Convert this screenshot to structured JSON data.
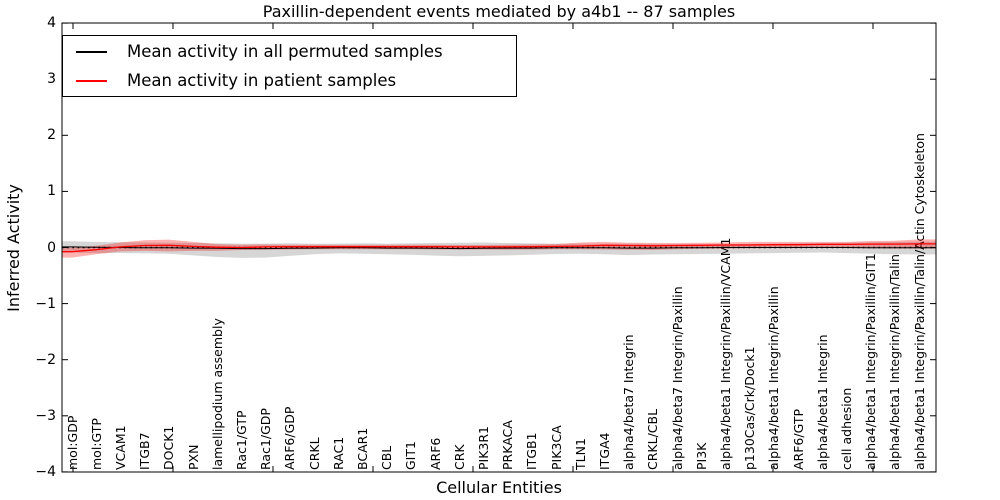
{
  "title": "Paxillin-dependent events mediated by a4b1 -- 87 samples",
  "axes": {
    "xlabel": "Cellular Entities",
    "ylabel": "Inferred Activity",
    "yticks": [
      4,
      3,
      2,
      1,
      0,
      -1,
      -2,
      -3,
      -4
    ],
    "ylim": [
      -4,
      4
    ]
  },
  "legend": [
    {
      "label": "Mean activity in all permuted samples",
      "color": "#000000"
    },
    {
      "label": "Mean activity in patient samples",
      "color": "#ff0000"
    }
  ],
  "colors": {
    "permuted_line": "#000000",
    "patient_line": "#ff0000",
    "permuted_band": "rgba(0,0,0,0.16)",
    "patient_band": "rgba(255,0,0,0.30)",
    "frame": "#000000"
  },
  "chart_data": {
    "type": "line",
    "title": "Paxillin-dependent events mediated by a4b1 -- 87 samples",
    "xlabel": "Cellular Entities",
    "ylabel": "Inferred Activity",
    "ylim": [
      -4,
      4
    ],
    "grid": false,
    "legend_position": "upper left",
    "categories": [
      "mol:GDP",
      "mol:GTP",
      "VCAM1",
      "ITGB7",
      "DOCK1",
      "PXN",
      "lamellipodium assembly",
      "Rac1/GTP",
      "Rac1/GDP",
      "ARF6/GDP",
      "CRKL",
      "RAC1",
      "BCAR1",
      "CBL",
      "GIT1",
      "ARF6",
      "CRK",
      "PIK3R1",
      "PRKACA",
      "ITGB1",
      "PIK3CA",
      "TLN1",
      "ITGA4",
      "alpha4/beta7 Integrin",
      "CRKL/CBL",
      "alpha4/beta7 Integrin/Paxillin",
      "PI3K",
      "alpha4/beta1 Integrin/Paxillin/VCAM1",
      "p130Cas/Crk/Dock1",
      "alpha4/beta1 Integrin/Paxillin",
      "ARF6/GTP",
      "alpha4/beta1 Integrin",
      "cell adhesion",
      "alpha4/beta1 Integrin/Paxillin/GIT1",
      "alpha4/beta1 Integrin/Paxillin/Talin",
      "alpha4/beta1 Integrin/Paxillin/Talin/Actin Cytoskeleton"
    ],
    "series": [
      {
        "name": "Mean activity in all permuted samples",
        "color": "#000000",
        "style": "solid",
        "values": [
          0.01,
          0.005,
          0,
          -0.005,
          -0.005,
          -0.01,
          -0.015,
          -0.02,
          -0.02,
          -0.015,
          -0.01,
          -0.005,
          -0.005,
          -0.01,
          -0.01,
          -0.015,
          -0.02,
          -0.015,
          -0.01,
          -0.01,
          -0.005,
          -0.005,
          -0.005,
          -0.01,
          -0.01,
          -0.005,
          -0.005,
          0,
          0,
          0,
          0,
          0,
          0,
          -0.005,
          -0.005,
          -0.005
        ]
      },
      {
        "name": "Mean activity in patient samples",
        "color": "#ff0000",
        "style": "solid",
        "values": [
          -0.075,
          -0.04,
          0.01,
          0.035,
          0.04,
          0.02,
          0.005,
          0,
          0.01,
          0.015,
          0.015,
          0.015,
          0.015,
          0.015,
          0.015,
          0.015,
          0.01,
          0.01,
          0.01,
          0.015,
          0.02,
          0.025,
          0.04,
          0.035,
          0.03,
          0.035,
          0.04,
          0.045,
          0.045,
          0.05,
          0.05,
          0.055,
          0.055,
          0.06,
          0.06,
          0.065
        ]
      },
      {
        "name": "Permuted samples std band",
        "type": "band",
        "color": "rgba(0,0,0,0.16)",
        "upper": [
          0.11,
          0.1,
          0.095,
          0.09,
          0.085,
          0.08,
          0.075,
          0.07,
          0.07,
          0.075,
          0.07,
          0.07,
          0.075,
          0.07,
          0.075,
          0.08,
          0.085,
          0.09,
          0.08,
          0.075,
          0.07,
          0.07,
          0.07,
          0.07,
          0.065,
          0.06,
          0.055,
          0.06,
          0.065,
          0.07,
          0.075,
          0.08,
          0.085,
          0.095,
          0.1,
          0.105
        ],
        "lower": [
          -0.09,
          -0.1,
          -0.1,
          -0.105,
          -0.11,
          -0.14,
          -0.17,
          -0.185,
          -0.18,
          -0.15,
          -0.12,
          -0.105,
          -0.11,
          -0.12,
          -0.13,
          -0.145,
          -0.155,
          -0.15,
          -0.14,
          -0.13,
          -0.115,
          -0.11,
          -0.12,
          -0.135,
          -0.125,
          -0.12,
          -0.115,
          -0.11,
          -0.105,
          -0.1,
          -0.095,
          -0.09,
          -0.1,
          -0.11,
          -0.12,
          -0.125
        ]
      },
      {
        "name": "Patient samples std band",
        "type": "band",
        "color": "rgba(255,0,0,0.30)",
        "upper": [
          -0.005,
          0.03,
          0.09,
          0.13,
          0.14,
          0.1,
          0.06,
          0.05,
          0.055,
          0.05,
          0.05,
          0.05,
          0.05,
          0.05,
          0.05,
          0.05,
          0.045,
          0.045,
          0.05,
          0.055,
          0.06,
          0.09,
          0.1,
          0.085,
          0.08,
          0.08,
          0.085,
          0.09,
          0.1,
          0.1,
          0.1,
          0.1,
          0.1,
          0.115,
          0.12,
          0.145
        ],
        "lower": [
          -0.18,
          -0.12,
          -0.07,
          -0.06,
          -0.07,
          -0.06,
          -0.06,
          -0.045,
          -0.04,
          -0.035,
          -0.03,
          -0.03,
          -0.03,
          -0.03,
          -0.03,
          -0.035,
          -0.035,
          -0.035,
          -0.04,
          -0.035,
          -0.03,
          -0.03,
          -0.035,
          -0.04,
          -0.045,
          -0.03,
          -0.02,
          -0.02,
          -0.015,
          -0.01,
          -0.01,
          -0.005,
          -0.01,
          -0.015,
          -0.02,
          -0.02
        ]
      },
      {
        "name": "Zero reference",
        "type": "reference",
        "color": "#000000",
        "style": "dotted",
        "value": 0
      }
    ]
  }
}
